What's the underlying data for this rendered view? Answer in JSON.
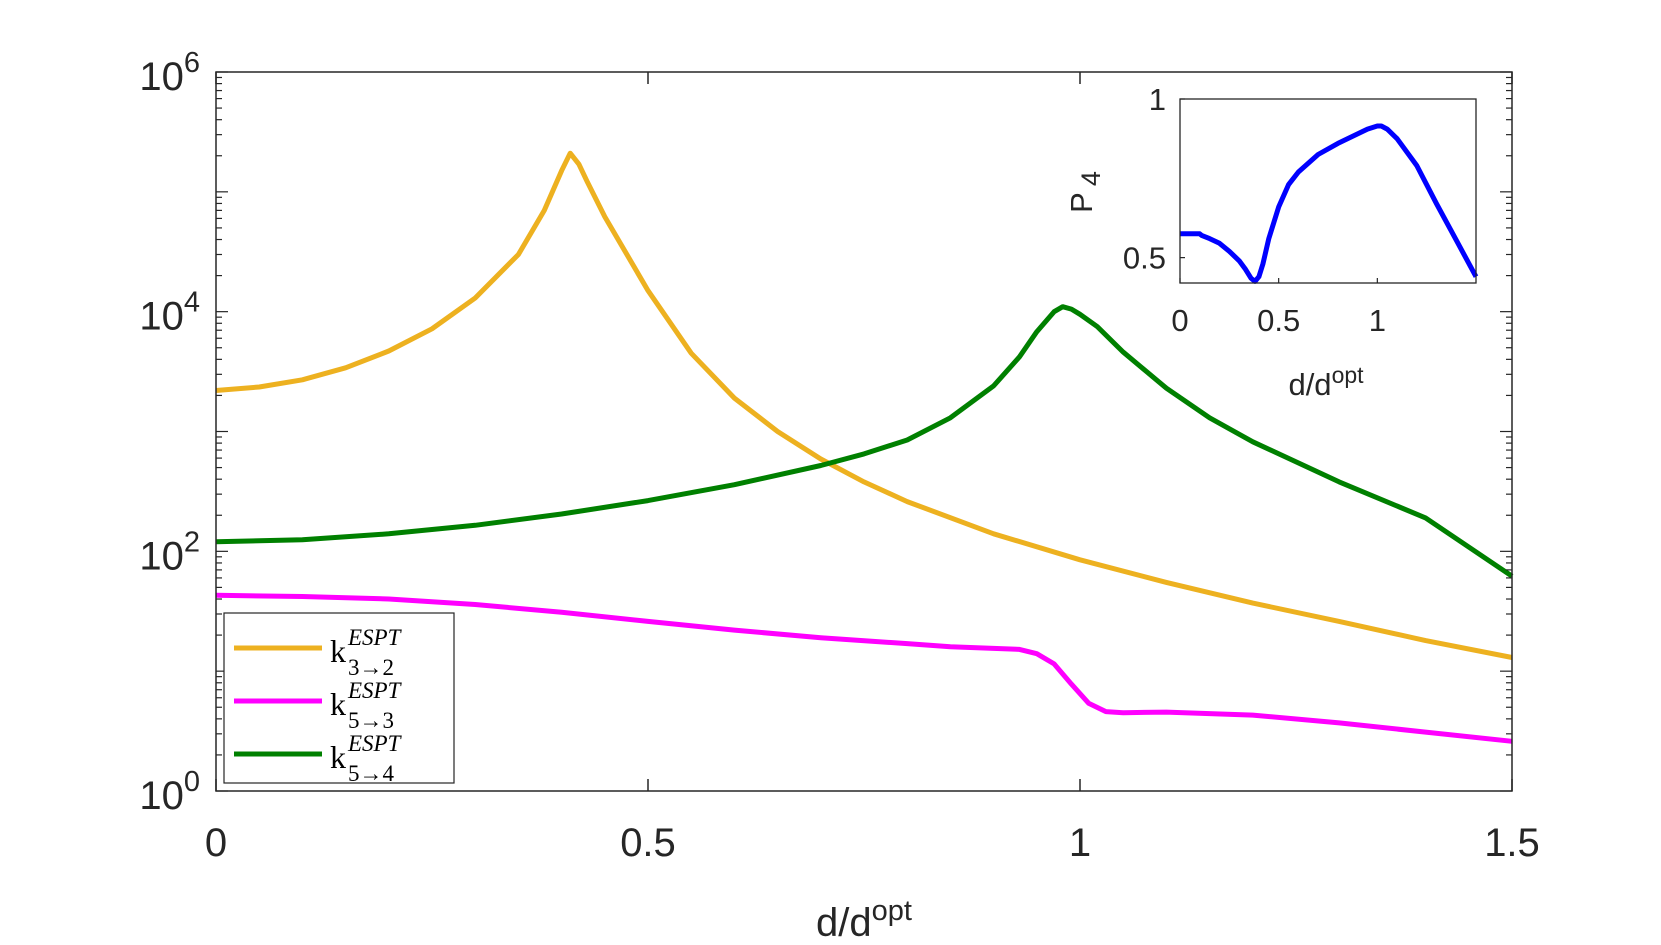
{
  "chart_data": [
    {
      "type": "line",
      "name": "main",
      "title": "",
      "xlabel": {
        "base": "d/d",
        "sup": "opt"
      },
      "ylabel": "",
      "yscale": "log",
      "xlim": [
        0,
        1.5
      ],
      "ylim": [
        1,
        1000000
      ],
      "grid": false,
      "legend_position": "bottom-left",
      "x_ticks": [
        0,
        0.5,
        1,
        1.5
      ],
      "x_tick_labels": [
        "0",
        "0.5",
        "1",
        "1.5"
      ],
      "y_ticks": [
        1,
        100,
        10000,
        1000000
      ],
      "y_tick_labels": [
        {
          "base": "10",
          "exp": "0"
        },
        {
          "base": "10",
          "exp": "2"
        },
        {
          "base": "10",
          "exp": "4"
        },
        {
          "base": "10",
          "exp": "6"
        }
      ],
      "series": [
        {
          "name": "k_{3→2}^{ESPT}",
          "legend": {
            "base": "k",
            "sup": "ESPT",
            "sub": "3→2"
          },
          "color": "#EDB120",
          "x": [
            0,
            0.05,
            0.1,
            0.15,
            0.2,
            0.25,
            0.3,
            0.35,
            0.38,
            0.4,
            0.41,
            0.42,
            0.43,
            0.45,
            0.5,
            0.55,
            0.6,
            0.65,
            0.7,
            0.75,
            0.8,
            0.9,
            1.0,
            1.1,
            1.2,
            1.3,
            1.4,
            1.5
          ],
          "y": [
            2200,
            2350,
            2700,
            3400,
            4700,
            7200,
            13000,
            30000,
            70000,
            150000,
            210000,
            170000,
            120000,
            62000,
            15000,
            4500,
            1900,
            1000,
            590,
            380,
            260,
            140,
            85,
            55,
            37,
            26,
            18,
            13
          ]
        },
        {
          "name": "k_{5→3}^{ESPT}",
          "legend": {
            "base": "k",
            "sup": "ESPT",
            "sub": "5→3"
          },
          "color": "#FF00FF",
          "x": [
            0,
            0.1,
            0.2,
            0.3,
            0.4,
            0.5,
            0.6,
            0.7,
            0.8,
            0.85,
            0.9,
            0.93,
            0.95,
            0.97,
            0.99,
            1.01,
            1.03,
            1.05,
            1.1,
            1.2,
            1.3,
            1.4,
            1.5
          ],
          "y": [
            43,
            42,
            40,
            36,
            31,
            26,
            22,
            19,
            17,
            16,
            15.5,
            15.2,
            14,
            11.5,
            7.8,
            5.4,
            4.6,
            4.5,
            4.55,
            4.3,
            3.7,
            3.1,
            2.6
          ]
        },
        {
          "name": "k_{5→4}^{ESPT}",
          "legend": {
            "base": "k",
            "sup": "ESPT",
            "sub": "5→4"
          },
          "color": "#008000",
          "x": [
            0,
            0.1,
            0.2,
            0.3,
            0.4,
            0.5,
            0.6,
            0.7,
            0.75,
            0.8,
            0.85,
            0.9,
            0.93,
            0.95,
            0.97,
            0.98,
            0.99,
            1.0,
            1.02,
            1.05,
            1.1,
            1.15,
            1.2,
            1.3,
            1.4,
            1.5
          ],
          "y": [
            120,
            125,
            140,
            165,
            205,
            265,
            360,
            520,
            650,
            850,
            1300,
            2400,
            4200,
            6800,
            10000,
            11000,
            10500,
            9500,
            7500,
            4600,
            2300,
            1300,
            820,
            380,
            190,
            62
          ]
        }
      ]
    },
    {
      "type": "line",
      "name": "inset",
      "title": "",
      "xlabel": {
        "base": "d/d",
        "sup": "opt"
      },
      "ylabel": {
        "base": "P",
        "sub": "4"
      },
      "xlim": [
        0,
        1.5
      ],
      "ylim": [
        0.42,
        1
      ],
      "grid": false,
      "x_ticks": [
        0,
        0.5,
        1
      ],
      "x_tick_labels": [
        "0",
        "0.5",
        "1"
      ],
      "y_ticks": [
        0.5,
        1
      ],
      "y_tick_labels": [
        "0.5",
        "1"
      ],
      "series": [
        {
          "name": "P_4",
          "color": "#0000FF",
          "x": [
            0,
            0.05,
            0.1,
            0.11,
            0.15,
            0.2,
            0.25,
            0.3,
            0.33,
            0.36,
            0.38,
            0.4,
            0.42,
            0.45,
            0.5,
            0.55,
            0.6,
            0.7,
            0.8,
            0.9,
            0.95,
            1.0,
            1.02,
            1.05,
            1.1,
            1.2,
            1.3,
            1.4,
            1.5
          ],
          "y": [
            0.575,
            0.575,
            0.575,
            0.57,
            0.56,
            0.545,
            0.52,
            0.49,
            0.465,
            0.435,
            0.425,
            0.44,
            0.48,
            0.56,
            0.66,
            0.73,
            0.77,
            0.825,
            0.86,
            0.89,
            0.905,
            0.915,
            0.915,
            0.905,
            0.875,
            0.79,
            0.67,
            0.555,
            0.44
          ]
        }
      ]
    }
  ]
}
